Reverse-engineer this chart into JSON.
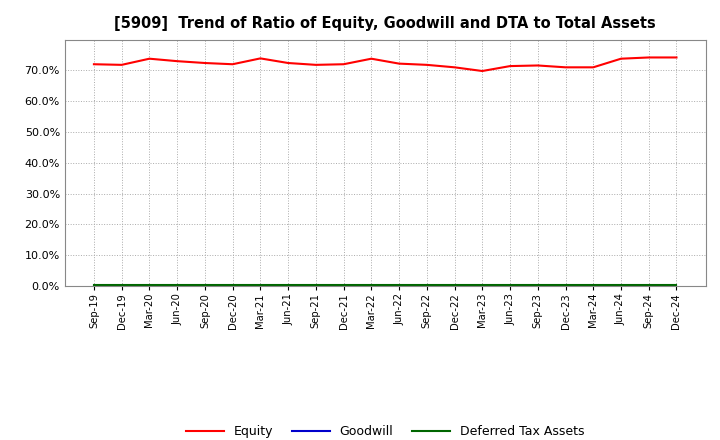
{
  "title": "[5909]  Trend of Ratio of Equity, Goodwill and DTA to Total Assets",
  "background_color": "#ffffff",
  "plot_bg_color": "#ffffff",
  "grid_color": "#aaaaaa",
  "ylim": [
    0.0,
    0.8
  ],
  "yticks": [
    0.0,
    0.1,
    0.2,
    0.3,
    0.4,
    0.5,
    0.6,
    0.7
  ],
  "x_labels": [
    "Sep-19",
    "Dec-19",
    "Mar-20",
    "Jun-20",
    "Sep-20",
    "Dec-20",
    "Mar-21",
    "Jun-21",
    "Sep-21",
    "Dec-21",
    "Mar-22",
    "Jun-22",
    "Sep-22",
    "Dec-22",
    "Mar-23",
    "Jun-23",
    "Sep-23",
    "Dec-23",
    "Mar-24",
    "Jun-24",
    "Sep-24",
    "Dec-24"
  ],
  "equity": [
    0.72,
    0.718,
    0.738,
    0.73,
    0.724,
    0.72,
    0.739,
    0.724,
    0.718,
    0.72,
    0.738,
    0.722,
    0.718,
    0.71,
    0.698,
    0.714,
    0.716,
    0.71,
    0.71,
    0.738,
    0.742,
    0.742
  ],
  "goodwill": [
    0.001,
    0.001,
    0.001,
    0.001,
    0.001,
    0.001,
    0.001,
    0.001,
    0.001,
    0.001,
    0.001,
    0.001,
    0.001,
    0.001,
    0.001,
    0.001,
    0.001,
    0.001,
    0.001,
    0.001,
    0.001,
    0.001
  ],
  "dta": [
    0.002,
    0.002,
    0.002,
    0.002,
    0.002,
    0.002,
    0.002,
    0.002,
    0.002,
    0.002,
    0.002,
    0.002,
    0.002,
    0.002,
    0.002,
    0.002,
    0.002,
    0.002,
    0.002,
    0.002,
    0.002,
    0.002
  ],
  "equity_color": "#ff0000",
  "goodwill_color": "#0000cc",
  "dta_color": "#006600",
  "line_width": 1.5,
  "legend_labels": [
    "Equity",
    "Goodwill",
    "Deferred Tax Assets"
  ]
}
